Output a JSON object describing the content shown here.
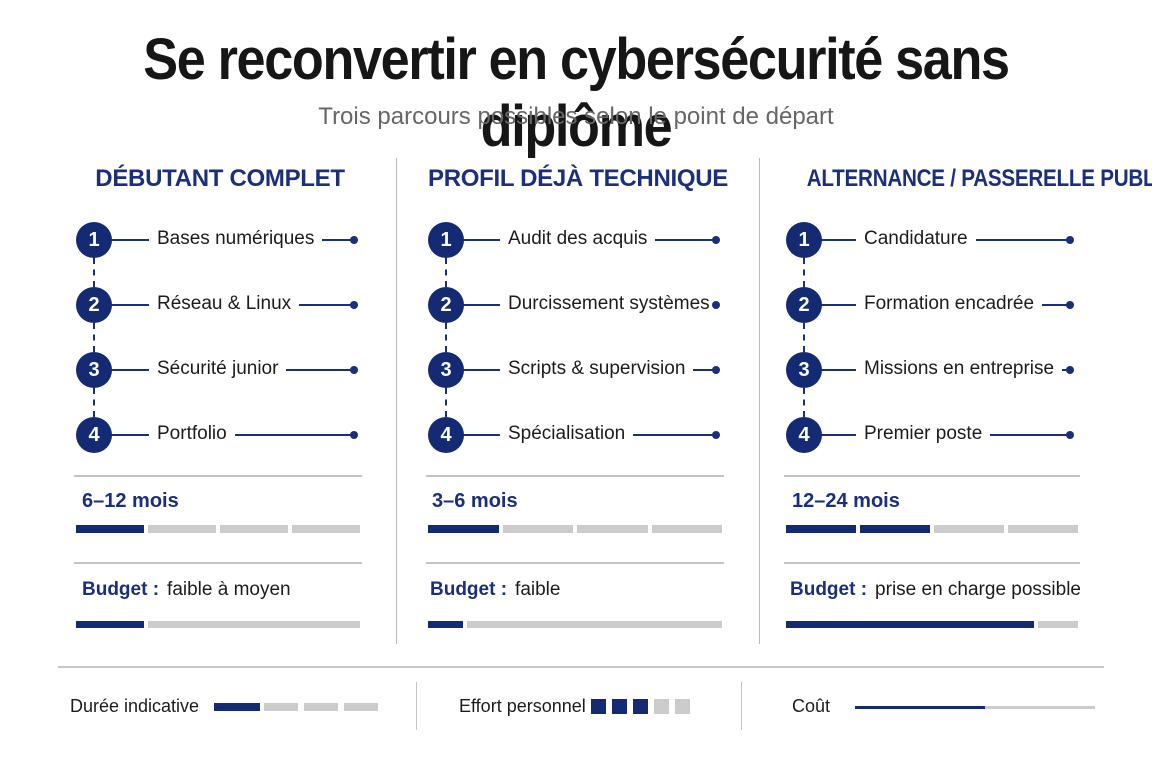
{
  "title": "Se reconvertir en cybersécurité sans diplôme",
  "subtitle": "Trois parcours possibles selon le point de départ",
  "columns": [
    {
      "heading": "DÉBUTANT COMPLET",
      "steps": [
        {
          "number": "1",
          "label": "Bases numériques"
        },
        {
          "number": "2",
          "label": "Réseau & Linux"
        },
        {
          "number": "3",
          "label": "Sécurité junior"
        },
        {
          "number": "4",
          "label": "Portfolio"
        }
      ],
      "duration": "6–12 mois",
      "duration_level": 1,
      "duration_segments": 4,
      "budget_label": "Budget :",
      "budget_value": "faible à moyen",
      "budget_fraction": 0.24
    },
    {
      "heading": "PROFIL DÉJÀ TECHNIQUE",
      "steps": [
        {
          "number": "1",
          "label": "Audit des acquis"
        },
        {
          "number": "2",
          "label": "Durcissement systèmes"
        },
        {
          "number": "3",
          "label": "Scripts & supervision"
        },
        {
          "number": "4",
          "label": "Spécialisation"
        }
      ],
      "duration": "3–6 mois",
      "duration_level": 1,
      "duration_segments": 4,
      "budget_label": "Budget :",
      "budget_value": "faible",
      "budget_fraction": 0.12
    },
    {
      "heading": "ALTERNANCE / PASSERELLE PUBLIQUE",
      "steps": [
        {
          "number": "1",
          "label": "Candidature"
        },
        {
          "number": "2",
          "label": "Formation encadrée"
        },
        {
          "number": "3",
          "label": "Missions en entreprise"
        },
        {
          "number": "4",
          "label": "Premier poste"
        }
      ],
      "duration": "12–24 mois",
      "duration_level": 2,
      "duration_segments": 4,
      "budget_label": "Budget :",
      "budget_value": "prise en charge possible",
      "budget_fraction": 0.85
    }
  ],
  "legend": {
    "duration_label": "Durée indicative",
    "duration_level": 1,
    "duration_segments": 4,
    "effort_label": "Effort personnel",
    "effort_level": 3,
    "effort_squares": 5,
    "cost_label": "Coût",
    "cost_fraction": 0.54
  },
  "colors": {
    "primary": "#142a73",
    "muted": "#cccccc",
    "divider": "#c4c4c4"
  }
}
